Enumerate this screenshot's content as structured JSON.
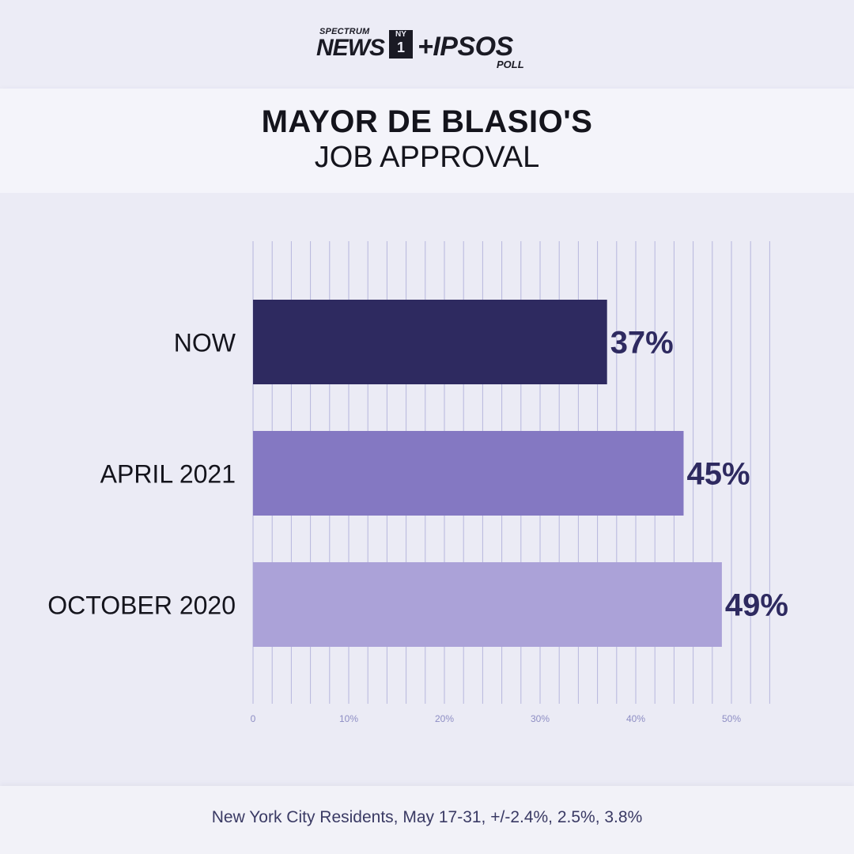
{
  "logo": {
    "spectrum": "SPECTRUM",
    "news": "NEWS",
    "ny1_top": "NY",
    "ny1_bottom": "1",
    "ipsos": "+IPSOS",
    "poll": "POLL"
  },
  "title_line1": "MAYOR DE BLASIO'S",
  "title_line2": "JOB APPROVAL",
  "footer": "New York City Residents, May 17-31, +/-2.4%, 2.5%, 3.8%",
  "colors": {
    "now": "#2e2a60",
    "april_2021": "#8478c2",
    "october_2020": "#aba2d8",
    "value_labels": "#2e2a60",
    "grid": "#b6b6dd",
    "ticks": "#8e8ec4"
  },
  "chart_data": {
    "type": "bar",
    "orientation": "horizontal",
    "title": "MAYOR DE BLASIO'S JOB APPROVAL",
    "categories": [
      "NOW",
      "APRIL 2021",
      "OCTOBER 2020"
    ],
    "values": [
      37,
      45,
      49
    ],
    "value_labels": [
      "37%",
      "45%",
      "49%"
    ],
    "xlim": [
      0,
      54
    ],
    "xticks": [
      0,
      10,
      20,
      30,
      40,
      50
    ],
    "xtick_labels": [
      "0",
      "10%",
      "20%",
      "30%",
      "40%",
      "50%"
    ],
    "grid": true,
    "grid_step": 2,
    "legend": "none"
  }
}
